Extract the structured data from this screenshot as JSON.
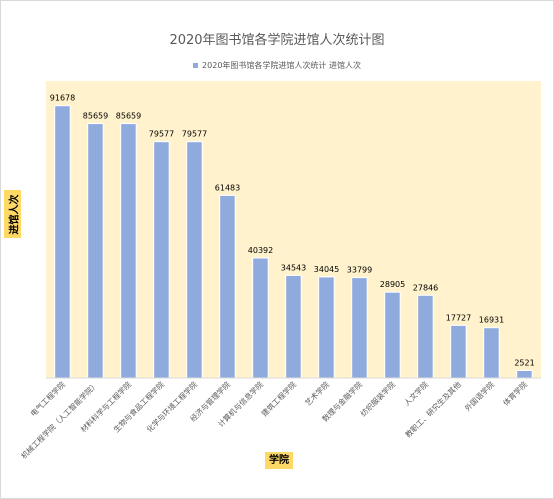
{
  "chart_data": {
    "type": "bar",
    "title": "2020年图书馆各学院进馆人次统计图",
    "xlabel": "学院",
    "ylabel": "进馆人次",
    "categories": [
      "电气工程学院",
      "机械工程学院（人工智能学院）",
      "材料科学与工程学院",
      "生物与食品工程学院",
      "化学与环境工程学院",
      "经济与管理学院",
      "计算机与信息学院",
      "建筑工程学院",
      "艺术学院",
      "数理与金融学院",
      "纺织服装学院",
      "人文学院",
      "教职工、研究生及其他",
      "外国语学院",
      "体育学院"
    ],
    "series": [
      {
        "name": "2020年图书馆各学院进馆人次统计 进馆人次",
        "values": [
          91678,
          85659,
          85659,
          79577,
          79577,
          61483,
          40392,
          34543,
          34045,
          33799,
          28905,
          27846,
          17727,
          16931,
          2521
        ]
      }
    ],
    "ylim": [
      0,
      100000
    ],
    "grid": false,
    "legend_position": "top",
    "colors": {
      "bar": "#8faadc",
      "plot_background": "#fff2cc",
      "axis_title_background": "#ffd966"
    }
  }
}
